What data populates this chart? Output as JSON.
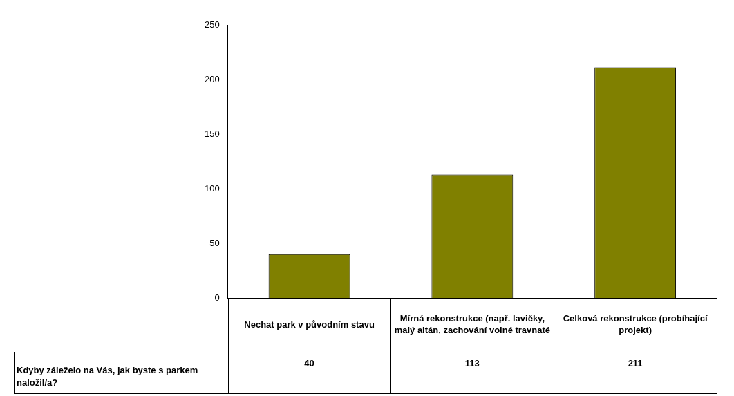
{
  "chart_data": {
    "type": "bar",
    "categories": [
      "Nechat park v původním stavu",
      "Mírná rekonstrukce (např. lavičky, malý altán, zachování volné travnaté",
      "Celková rekonstrukce (probíhající projekt)"
    ],
    "series": [
      {
        "name": "Kdyby záleželo na Vás, jak byste s parkem naložil/a?",
        "color": "#808000",
        "values": [
          40,
          113,
          211
        ]
      }
    ],
    "ylim": [
      0,
      250
    ],
    "yticks": [
      0,
      50,
      100,
      150,
      200,
      250
    ],
    "grid": false,
    "legend": false,
    "data_labels": true
  }
}
